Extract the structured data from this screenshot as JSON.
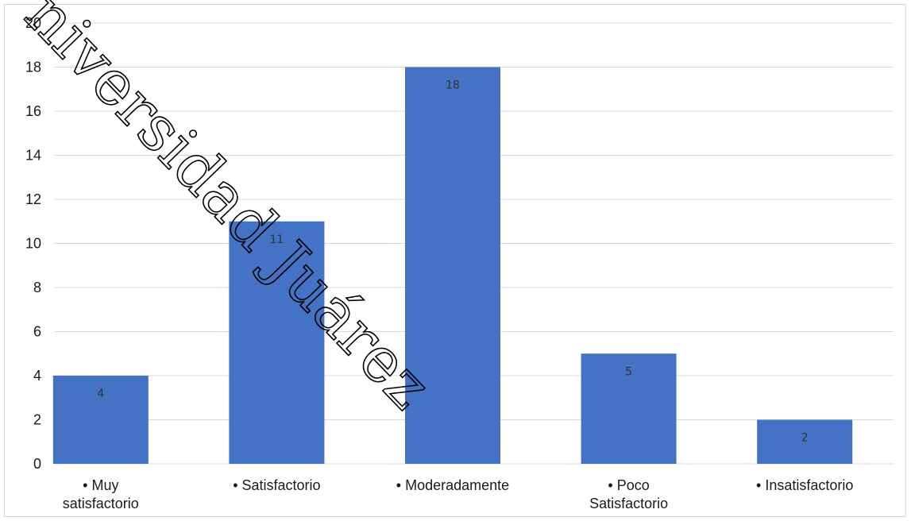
{
  "chart_data": {
    "type": "bar",
    "categories": [
      "• Muy satisfactorio",
      "• Satisfactorio",
      "• Moderadamente",
      "• Poco Satisfactorio",
      "• Insatisfactorio"
    ],
    "category_lines": [
      [
        "• Muy",
        "satisfactorio"
      ],
      [
        "• Satisfactorio"
      ],
      [
        "• Moderadamente"
      ],
      [
        "• Poco",
        "Satisfactorio"
      ],
      [
        "• Insatisfactorio"
      ]
    ],
    "values": [
      4,
      11,
      18,
      5,
      2
    ],
    "ylim": [
      0,
      20
    ],
    "yticks": [
      0,
      2,
      4,
      6,
      8,
      10,
      12,
      14,
      16,
      18,
      20
    ],
    "title": "",
    "xlabel": "",
    "ylabel": "",
    "grid": true,
    "data_labels": true,
    "bar_color": "#4472c4",
    "grid_color": "#d9d9d9"
  },
  "watermark": "niversidad Juárez"
}
